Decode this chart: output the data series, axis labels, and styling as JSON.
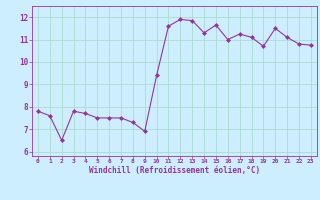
{
  "x": [
    0,
    1,
    2,
    3,
    4,
    5,
    6,
    7,
    8,
    9,
    10,
    11,
    12,
    13,
    14,
    15,
    16,
    17,
    18,
    19,
    20,
    21,
    22,
    23
  ],
  "y": [
    7.8,
    7.6,
    6.5,
    7.8,
    7.7,
    7.5,
    7.5,
    7.5,
    7.3,
    6.9,
    9.4,
    11.6,
    11.9,
    11.85,
    11.3,
    11.65,
    11.0,
    11.25,
    11.1,
    10.7,
    11.5,
    11.1,
    10.8,
    10.75
  ],
  "line_color": "#993399",
  "marker_color": "#993399",
  "bg_color": "#cceeff",
  "grid_color": "#aaddcc",
  "tick_color": "#993399",
  "label_color": "#993399",
  "xlabel": "Windchill (Refroidissement éolien,°C)",
  "xlim": [
    -0.5,
    23.5
  ],
  "ylim": [
    5.8,
    12.5
  ],
  "yticks": [
    6,
    7,
    8,
    9,
    10,
    11,
    12
  ],
  "xticks": [
    0,
    1,
    2,
    3,
    4,
    5,
    6,
    7,
    8,
    9,
    10,
    11,
    12,
    13,
    14,
    15,
    16,
    17,
    18,
    19,
    20,
    21,
    22,
    23
  ],
  "figsize": [
    3.2,
    2.0
  ],
  "dpi": 100
}
